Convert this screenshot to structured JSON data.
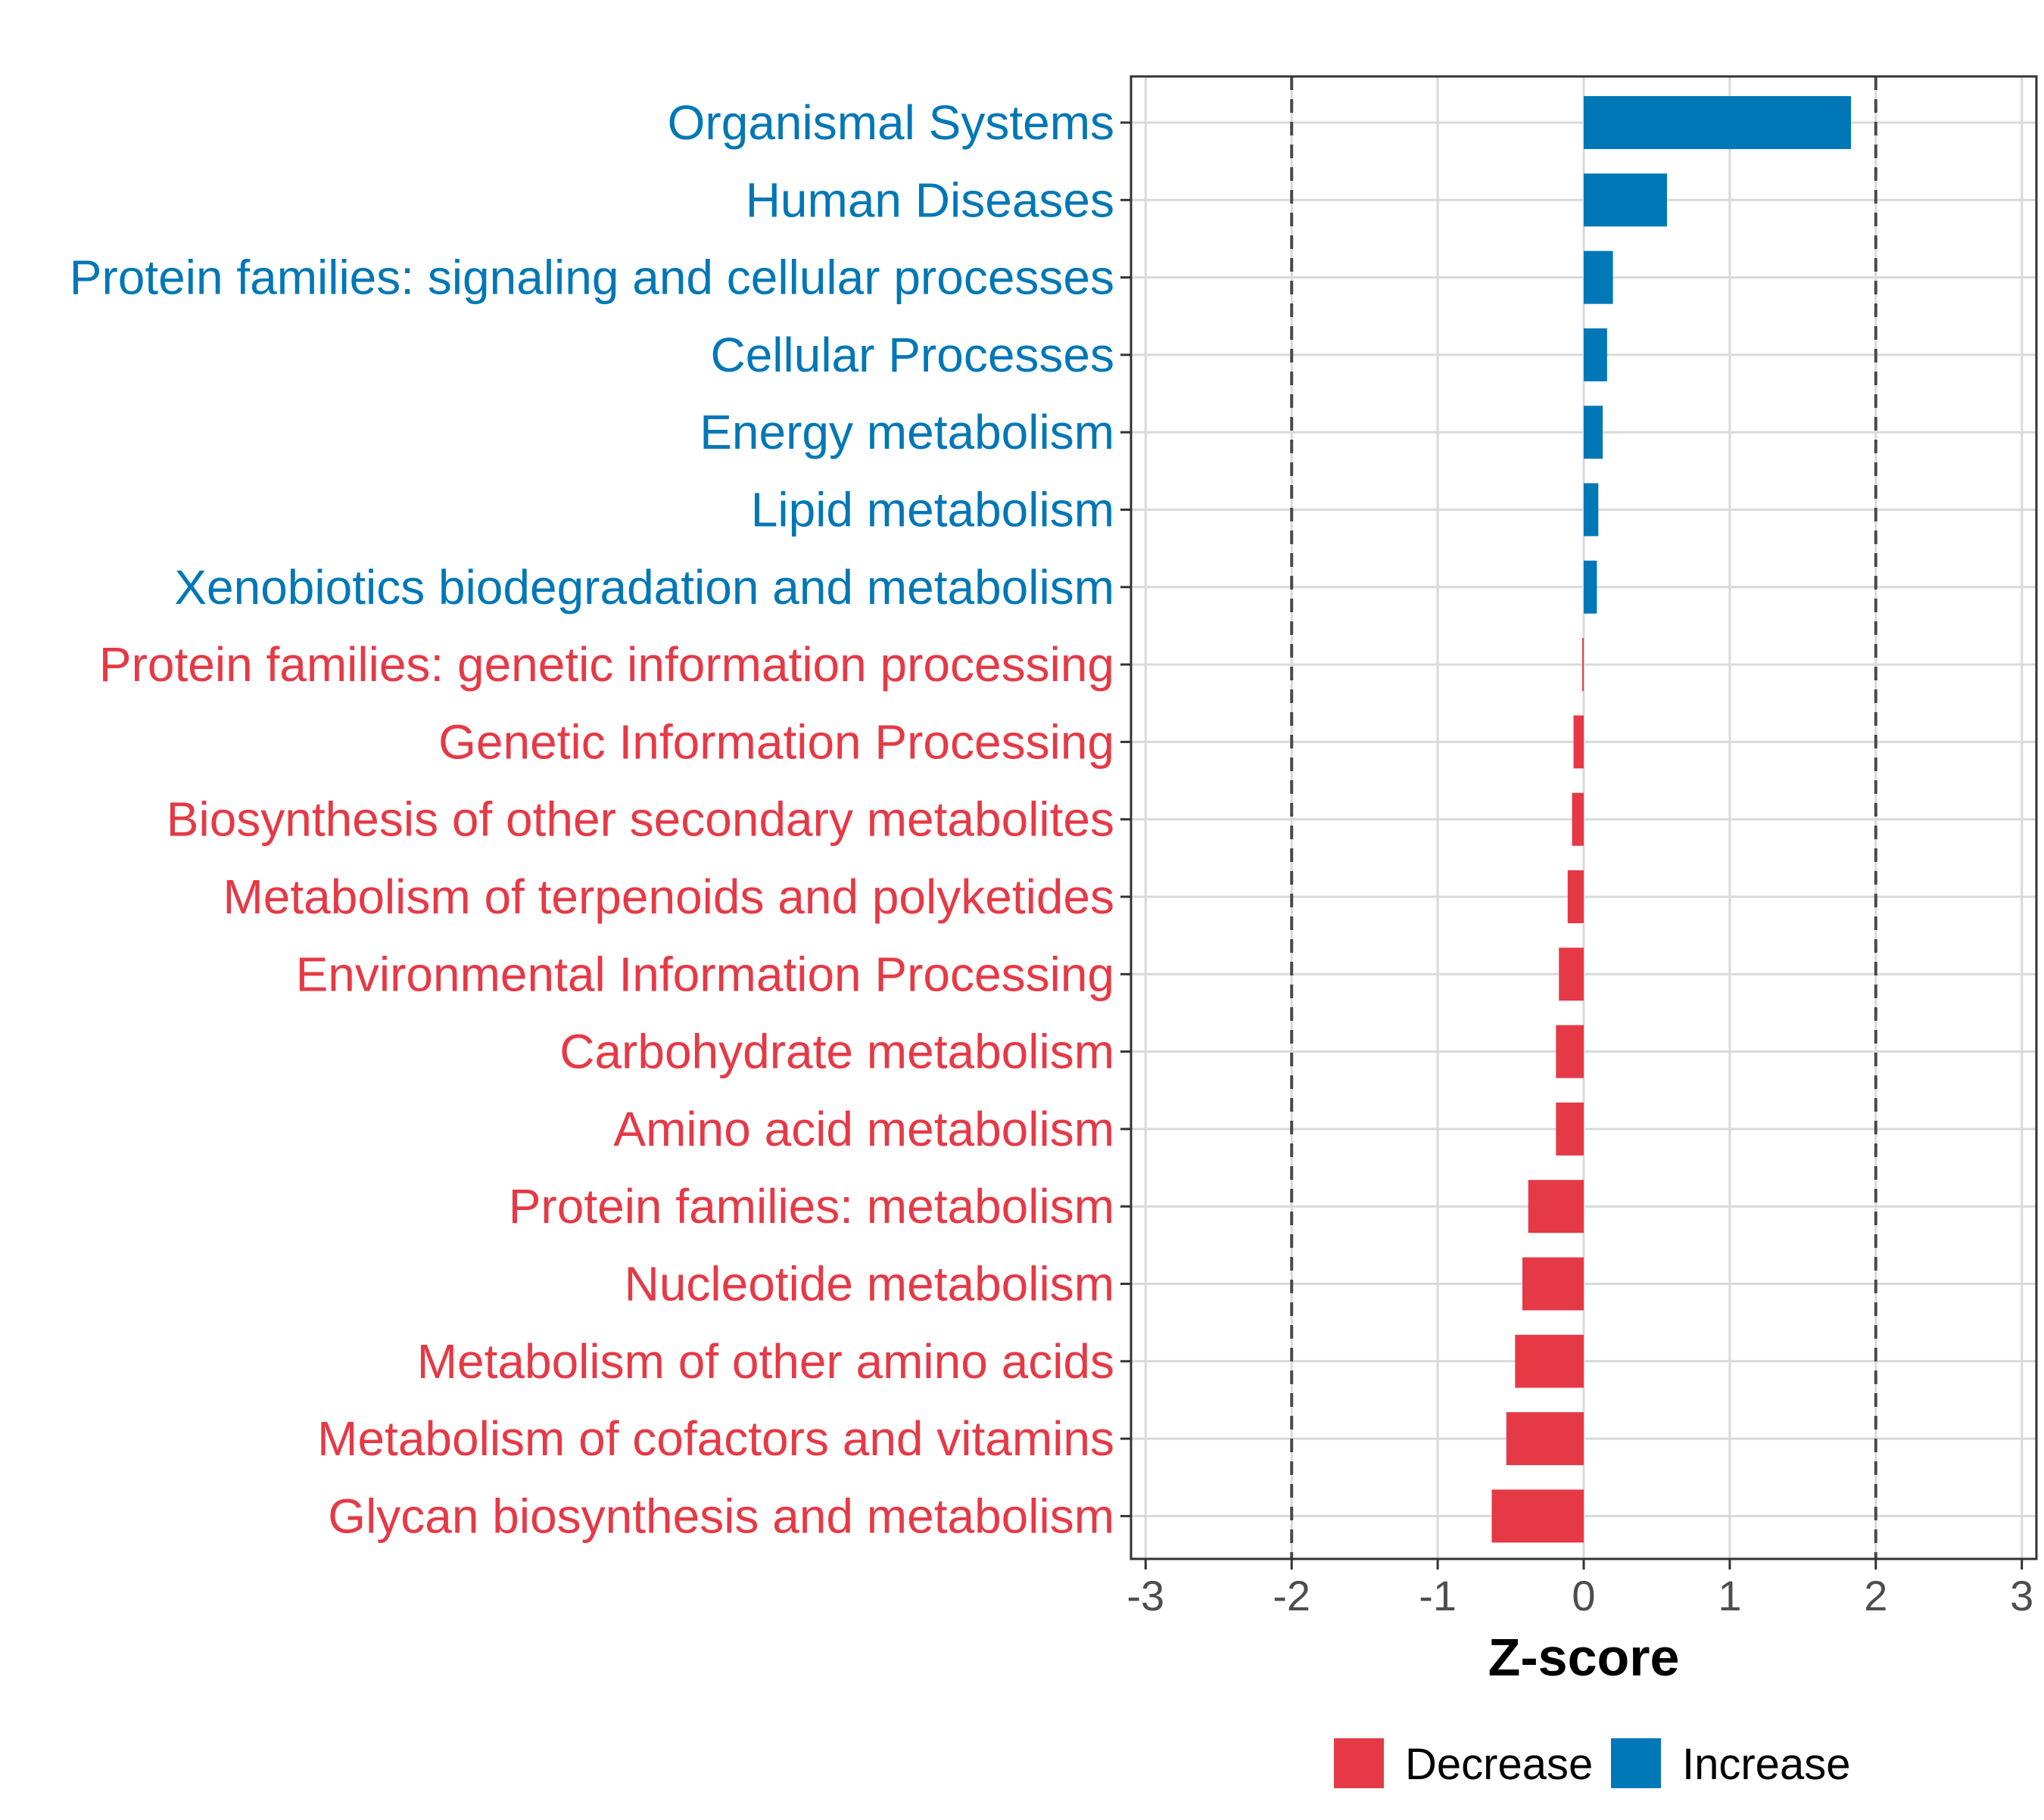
{
  "chart_data": {
    "type": "bar",
    "orientation": "horizontal",
    "title": "",
    "xlabel": "Z-score",
    "ylabel": "",
    "xlim": [
      -3.1,
      3.1
    ],
    "xticks": [
      -3,
      -2,
      -1,
      0,
      1,
      2,
      3
    ],
    "xtick_labels": [
      "-3",
      "-2",
      "-1",
      "0",
      "1",
      "2",
      "3"
    ],
    "reference_lines": [
      -2,
      2
    ],
    "grid": true,
    "categories": [
      "Organismal Systems",
      "Human Diseases",
      "Protein families: signaling and cellular processes",
      "Cellular Processes",
      "Energy metabolism",
      "Lipid metabolism",
      "Xenobiotics biodegradation and metabolism",
      "Protein families: genetic information processing",
      "Genetic Information Processing",
      "Biosynthesis of other secondary metabolites",
      "Metabolism of terpenoids and polyketides",
      "Environmental Information Processing",
      "Carbohydrate metabolism",
      "Amino acid metabolism",
      "Protein families: metabolism",
      "Nucleotide metabolism",
      "Metabolism of other amino acids",
      "Metabolism of cofactors and vitamins",
      "Glycan biosynthesis and metabolism"
    ],
    "values": [
      1.83,
      0.57,
      0.2,
      0.16,
      0.13,
      0.1,
      0.09,
      -0.01,
      -0.07,
      -0.08,
      -0.11,
      -0.17,
      -0.19,
      -0.19,
      -0.38,
      -0.42,
      -0.47,
      -0.53,
      -0.63
    ],
    "series_groups": [
      {
        "name": "Decrease",
        "color": "#e63946"
      },
      {
        "name": "Increase",
        "color": "#0077b6"
      }
    ],
    "legend": {
      "position": "bottom",
      "entries": [
        "Decrease",
        "Increase"
      ]
    }
  }
}
